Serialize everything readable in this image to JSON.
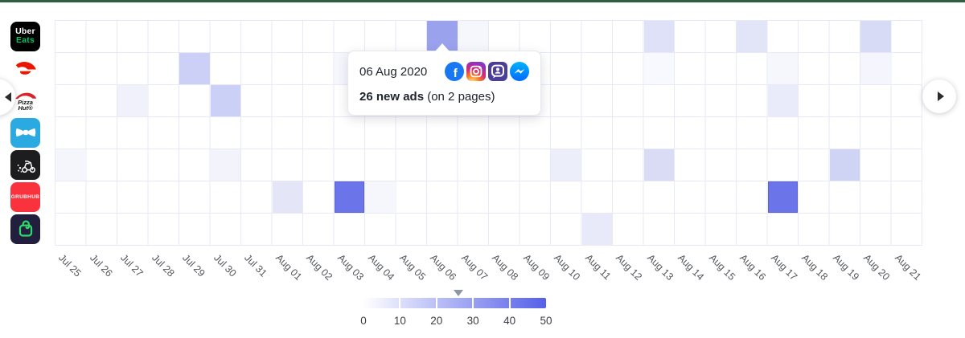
{
  "page": {
    "top_bar_color": "#2f5d40",
    "background": "#ffffff"
  },
  "tooltip": {
    "date": "06 Aug 2020",
    "ads_count_bold": "26 new ads",
    "ads_suffix": " (on 2 pages)",
    "platform_icons": [
      "facebook",
      "instagram",
      "audience-network",
      "messenger"
    ]
  },
  "brands": [
    {
      "id": "uber-eats",
      "text_line1": "Uber",
      "text_line2": "Eats",
      "bg": "#000000",
      "accent": "#05c167"
    },
    {
      "id": "doordash",
      "bg": "#ffffff",
      "accent": "#eb1700"
    },
    {
      "id": "pizza-hut",
      "text_line1": "Pizza",
      "text_line2": "Hut®",
      "bg": "#ffffff",
      "accent": "#d9232a"
    },
    {
      "id": "bowtie",
      "bg": "#2ba9e1",
      "accent": "#ffffff"
    },
    {
      "id": "scooter",
      "bg": "#1d1d1f",
      "accent": "#ffffff"
    },
    {
      "id": "grubhub",
      "text_line1": "GRUBHUB",
      "bg": "#f9323e",
      "accent": "#ffffff"
    },
    {
      "id": "bag",
      "bg": "#221e3e",
      "accent": "#2fd768"
    }
  ],
  "chart_data": {
    "type": "heatmap",
    "x_categories": [
      "Jul 25",
      "Jul 26",
      "Jul 27",
      "Jul 28",
      "Jul 29",
      "Jul 30",
      "Jul 31",
      "Aug 01",
      "Aug 02",
      "Aug 03",
      "Aug 04",
      "Aug 05",
      "Aug 06",
      "Aug 07",
      "Aug 08",
      "Aug 09",
      "Aug 10",
      "Aug 11",
      "Aug 12",
      "Aug 13",
      "Aug 14",
      "Aug 15",
      "Aug 16",
      "Aug 17",
      "Aug 18",
      "Aug 19",
      "Aug 20",
      "Aug 21"
    ],
    "y_categories": [
      "uber-eats",
      "doordash",
      "pizza-hut",
      "bowtie",
      "scooter",
      "grubhub",
      "bag"
    ],
    "value_range": [
      0,
      50
    ],
    "grid": {
      "line_color": "#e7e9f7",
      "rows": 7,
      "cols": 28
    },
    "legend": {
      "ticks": [
        0,
        10,
        20,
        30,
        40,
        50
      ],
      "marker_value": 26,
      "gradient_from": "#ffffff",
      "gradient_to": "#5560e8"
    },
    "cells": [
      {
        "row": 0,
        "col": 12,
        "value": 26,
        "color": "#9aa2ee"
      },
      {
        "row": 0,
        "col": 13,
        "value": 3,
        "color": "#f6f7fd"
      },
      {
        "row": 0,
        "col": 19,
        "value": 9,
        "color": "#dfe1f8"
      },
      {
        "row": 0,
        "col": 22,
        "value": 8,
        "color": "#e2e4f8"
      },
      {
        "row": 0,
        "col": 26,
        "value": 11,
        "color": "#d8dbf6"
      },
      {
        "row": 1,
        "col": 4,
        "value": 15,
        "color": "#ccd0f7"
      },
      {
        "row": 1,
        "col": 9,
        "value": 3,
        "color": "#f6f7fd"
      },
      {
        "row": 1,
        "col": 19,
        "value": 2,
        "color": "#f8f9fe"
      },
      {
        "row": 1,
        "col": 23,
        "value": 3,
        "color": "#f6f7fd"
      },
      {
        "row": 1,
        "col": 26,
        "value": 3,
        "color": "#f5f6fd"
      },
      {
        "row": 2,
        "col": 2,
        "value": 4,
        "color": "#f0f1fb"
      },
      {
        "row": 2,
        "col": 5,
        "value": 15,
        "color": "#cbd0f6"
      },
      {
        "row": 2,
        "col": 23,
        "value": 6,
        "color": "#e9ebfa"
      },
      {
        "row": 4,
        "col": 0,
        "value": 3,
        "color": "#f5f6fc"
      },
      {
        "row": 4,
        "col": 5,
        "value": 4,
        "color": "#f2f3fb"
      },
      {
        "row": 4,
        "col": 16,
        "value": 6,
        "color": "#eceefa"
      },
      {
        "row": 4,
        "col": 19,
        "value": 11,
        "color": "#dadcf6"
      },
      {
        "row": 4,
        "col": 25,
        "value": 14,
        "color": "#d0d4f4"
      },
      {
        "row": 5,
        "col": 7,
        "value": 8,
        "color": "#e4e6f8"
      },
      {
        "row": 5,
        "col": 9,
        "value": 44,
        "color": "#6b74e8"
      },
      {
        "row": 5,
        "col": 10,
        "value": 3,
        "color": "#f6f7fd"
      },
      {
        "row": 5,
        "col": 23,
        "value": 44,
        "color": "#6b74e8"
      },
      {
        "row": 6,
        "col": 17,
        "value": 7,
        "color": "#e8eafa"
      }
    ]
  }
}
